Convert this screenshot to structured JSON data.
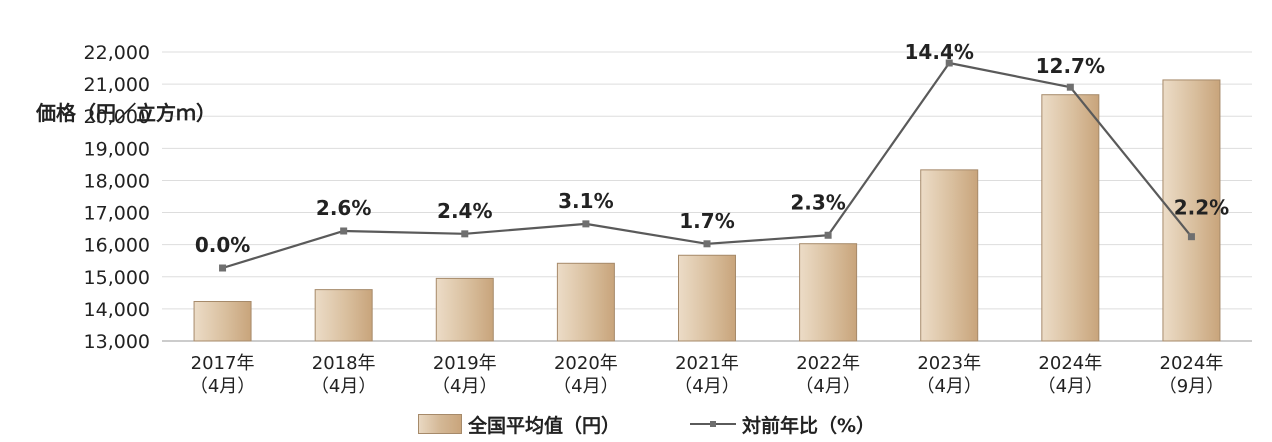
{
  "chart_data": {
    "type": "bar",
    "categories": [
      [
        "2017年",
        "（4月）"
      ],
      [
        "2018年",
        "（4月）"
      ],
      [
        "2019年",
        "（4月）"
      ],
      [
        "2020年",
        "（4月）"
      ],
      [
        "2021年",
        "（4月）"
      ],
      [
        "2022年",
        "（4月）"
      ],
      [
        "2023年",
        "（4月）"
      ],
      [
        "2024年",
        "（4月）"
      ],
      [
        "2024年",
        "（9月）"
      ]
    ],
    "series": [
      {
        "name": "全国平均值（円）",
        "type": "bar",
        "values": [
          14230,
          14600,
          14950,
          15420,
          15670,
          16030,
          18330,
          20670,
          21130
        ]
      },
      {
        "name": "対前年比（%）",
        "type": "line",
        "values": [
          0.0,
          2.6,
          2.4,
          3.1,
          1.7,
          2.3,
          14.4,
          12.7,
          2.2
        ],
        "data_labels": [
          "0.0%",
          "2.6%",
          "2.4%",
          "3.1%",
          "1.7%",
          "2.3%",
          "14.4%",
          "12.7%",
          "2.2%"
        ]
      }
    ],
    "y_axis": {
      "label": "価格（円／立方ｍ）",
      "range": [
        13000,
        22000
      ],
      "ticks": [
        "13,000",
        "14,000",
        "15,000",
        "16,000",
        "17,000",
        "18,000",
        "19,000",
        "20,000",
        "21,000",
        "22,000"
      ]
    },
    "grid": true,
    "legend_position": "bottom-center",
    "colors": {
      "bar_light": "#e9d8c2",
      "bar_dark": "#c9a57c",
      "bar_border": "#a68a6a",
      "line": "#5a5a5a",
      "grid": "#dddddd"
    }
  },
  "legend": {
    "bar_label": "全国平均值（円）",
    "line_label": "対前年比（%）"
  }
}
